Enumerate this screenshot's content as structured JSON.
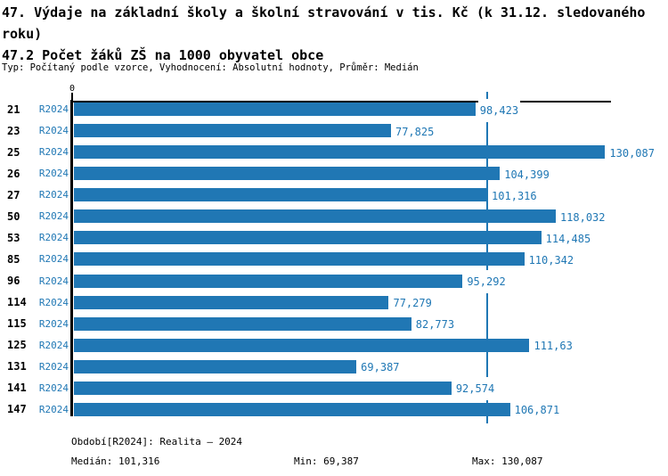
{
  "header": {
    "title": "47. Výdaje na základní školy a školní stravování v tis. Kč (k 31.12. sledovaného roku)",
    "subtitle": "47.2 Počet žáků ZŠ na 1000 obyvatel obce",
    "meta": "Typ: Počítaný podle vzorce, Vyhodnocení: Absolutní hodnoty, Průměr: Medián"
  },
  "chart_data": {
    "type": "bar",
    "orientation": "horizontal",
    "title": "47.2 Počet žáků ZŠ na 1000 obyvatel obce",
    "categories": [
      "21",
      "23",
      "25",
      "26",
      "27",
      "50",
      "53",
      "85",
      "96",
      "114",
      "115",
      "125",
      "131",
      "141",
      "147"
    ],
    "series_label": "R2024",
    "values": [
      98.423,
      77.825,
      130.087,
      104.399,
      101.316,
      118.032,
      114.485,
      110.342,
      95.292,
      77.279,
      82.773,
      111.63,
      69.387,
      92.574,
      106.871
    ],
    "value_labels": [
      "98,423",
      "77,825",
      "130,087",
      "104,399",
      "101,316",
      "118,032",
      "114,485",
      "110,342",
      "95,292",
      "77,279",
      "82,773",
      "111,63",
      "69,387",
      "92,574",
      "106,871"
    ],
    "xlim": [
      0,
      131.5
    ],
    "zero_tick_label": "0",
    "median_reference_line": 101.316,
    "grid": false,
    "legend": "none",
    "bar_color": "#2077b4",
    "text_color": "#1f77b4"
  },
  "footer": {
    "period": "Období[R2024]: Realita – 2024",
    "median": "Medián: 101,316",
    "min": "Min: 69,387",
    "max": "Max: 130,087"
  }
}
